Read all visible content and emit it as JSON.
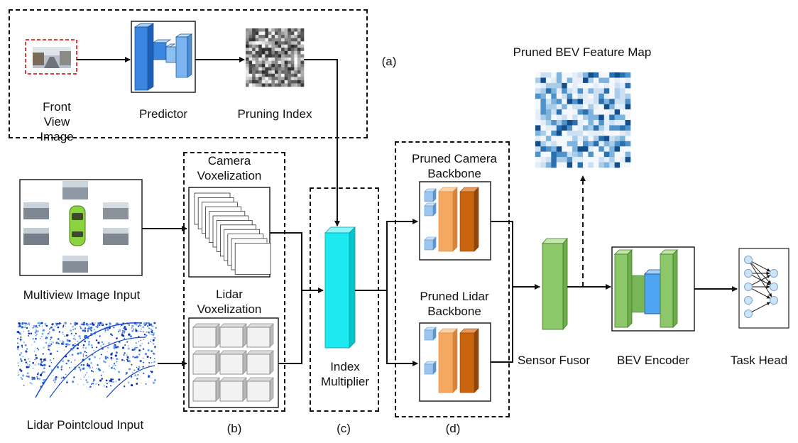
{
  "labels": {
    "front_view": "Front View Image",
    "predictor": "Predictor",
    "pruning_index": "Pruning Index",
    "section_a": "(a)",
    "pruned_bev": "Pruned BEV Feature Map",
    "camera_vox": "Camera Voxelization",
    "lidar_vox": "Lidar Voxelization",
    "multiview": "Multiview Image Input",
    "lidar_input": "Lidar Pointcloud Input",
    "section_b": "(b)",
    "index_mult": "Index Multiplier",
    "section_c": "(c)",
    "pruned_cam_bb": "Pruned Camera Backbone",
    "pruned_lidar_bb": "Pruned Lidar Backbone",
    "section_d": "(d)",
    "sensor_fusor": "Sensor Fusor",
    "bev_encoder": "BEV Encoder",
    "task_head": "Task Head"
  },
  "colors": {
    "predictor_blue": "#3a86e0",
    "index_cyan": "#1de9f0",
    "backbone_orange": "#f5a862",
    "backbone_brown": "#c8640e",
    "backbone_lightblue": "#9cc6ee",
    "fusor_green": "#8cc86a",
    "encoder_blue": "#4ea5f2",
    "front_view_border": "#e53935",
    "lidar_points": "#1a4ccc"
  }
}
